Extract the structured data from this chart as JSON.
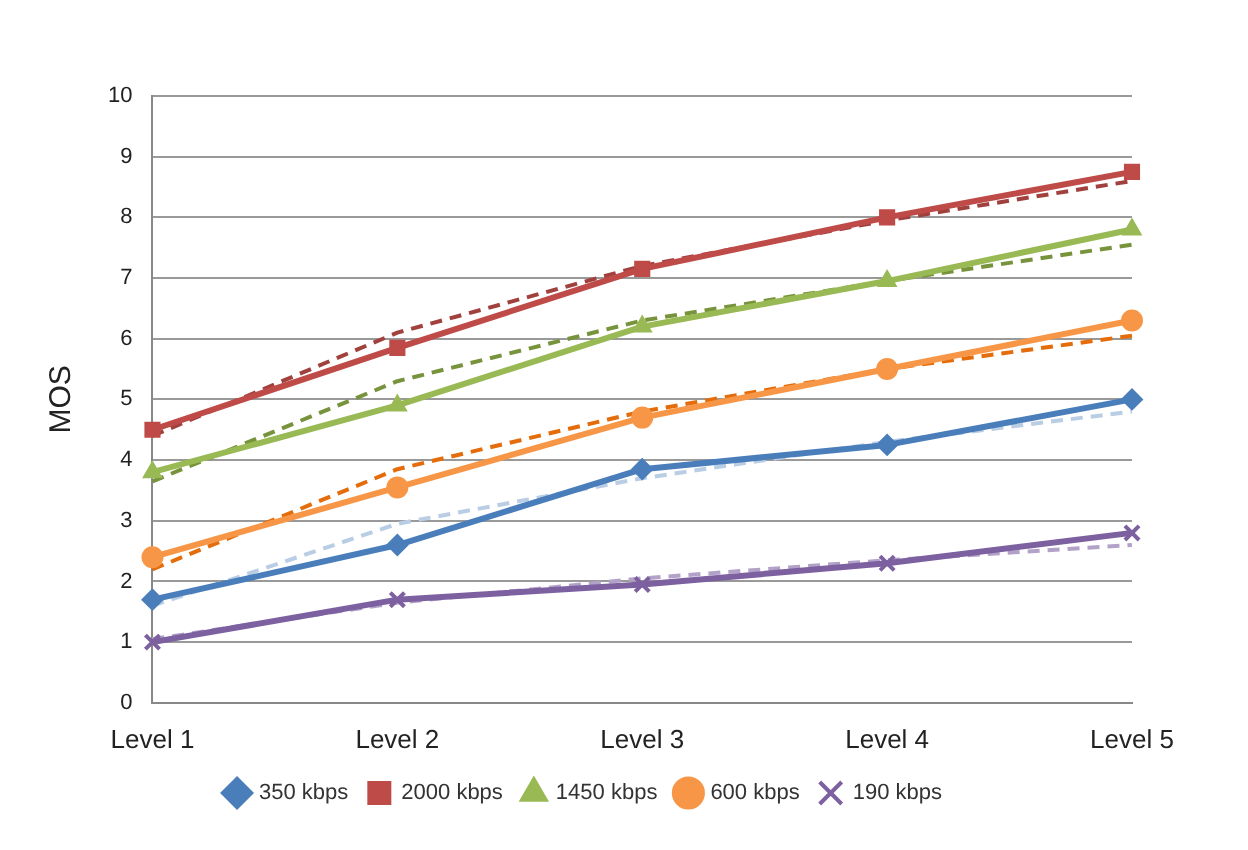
{
  "chart_data": {
    "type": "line",
    "ylabel": "MOS",
    "categories": [
      "Level 1",
      "Level 2",
      "Level 3",
      "Level 4",
      "Level 5"
    ],
    "ylim": [
      0,
      10
    ],
    "yticks": [
      0,
      1,
      2,
      3,
      4,
      5,
      6,
      7,
      8,
      9,
      10
    ],
    "grid": "y",
    "legend": "bottom",
    "series": [
      {
        "name": "350 kbps",
        "color": "#4a7ebb",
        "marker": "diamond",
        "line_style": "solid",
        "values": [
          1.7,
          2.6,
          3.85,
          4.25,
          5.0
        ]
      },
      {
        "name": "2000 kbps",
        "color": "#be4b48",
        "marker": "square",
        "line_style": "solid",
        "values": [
          4.5,
          5.85,
          7.15,
          8.0,
          8.75
        ]
      },
      {
        "name": "1450 kbps",
        "color": "#98b954",
        "marker": "triangle",
        "line_style": "solid",
        "values": [
          3.8,
          4.9,
          6.2,
          6.95,
          7.8
        ]
      },
      {
        "name": "600 kbps",
        "color": "#f79646",
        "marker": "circle",
        "line_style": "solid",
        "values": [
          2.4,
          3.55,
          4.7,
          5.5,
          6.3
        ]
      },
      {
        "name": "190 kbps",
        "color": "#7d60a0",
        "marker": "cross",
        "line_style": "solid",
        "values": [
          1.0,
          1.7,
          1.95,
          2.3,
          2.8
        ]
      },
      {
        "type": "line",
        "color": "#b9cde5",
        "marker": "none",
        "line_style": "dashed",
        "values": [
          1.6,
          2.95,
          3.7,
          4.3,
          4.8
        ]
      },
      {
        "type": "line",
        "color": "#a0413e",
        "marker": "none",
        "line_style": "dashed",
        "values": [
          4.4,
          6.1,
          7.2,
          7.95,
          8.6
        ]
      },
      {
        "type": "line",
        "color": "#77933c",
        "marker": "none",
        "line_style": "dashed",
        "values": [
          3.65,
          5.3,
          6.3,
          6.95,
          7.55
        ]
      },
      {
        "type": "line",
        "color": "#e46c0a",
        "marker": "none",
        "line_style": "dashed",
        "values": [
          2.2,
          3.85,
          4.8,
          5.5,
          6.05
        ]
      },
      {
        "type": "line",
        "color": "#b3a2c7",
        "marker": "none",
        "line_style": "dashed",
        "values": [
          1.05,
          1.65,
          2.05,
          2.35,
          2.6
        ]
      }
    ]
  }
}
